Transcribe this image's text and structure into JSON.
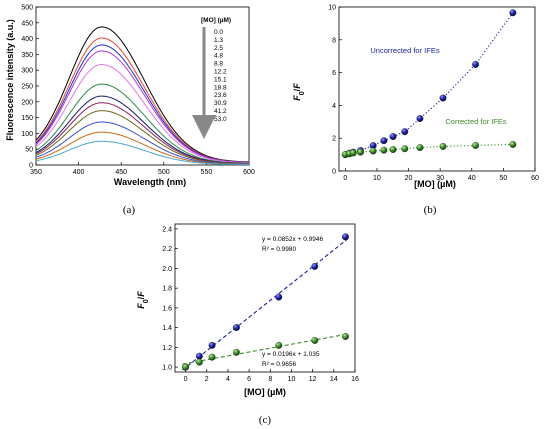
{
  "chart_data": [
    {
      "id": "a",
      "type": "line",
      "caption": "(a)",
      "xlabel": "Wavelength (nm)",
      "ylabel": "Fluorescence intensity (a.u.)",
      "xlim": [
        350,
        600
      ],
      "ylim": [
        0,
        500
      ],
      "xticks": [
        350,
        400,
        450,
        500,
        550,
        600
      ],
      "yticks": [
        0,
        50,
        100,
        150,
        200,
        250,
        300,
        350,
        400,
        450,
        500
      ],
      "legend_title": "[MO] (µM)",
      "peak_wavelength": 427,
      "series": [
        {
          "name": "0.0",
          "color": "#000000",
          "peak": 437
        },
        {
          "name": "1.3",
          "color": "#e8452e",
          "peak": 402
        },
        {
          "name": "2.5",
          "color": "#2231c9",
          "peak": 380
        },
        {
          "name": "4.8",
          "color": "#b03bd6",
          "peak": 361
        },
        {
          "name": "8.8",
          "color": "#e07ae6",
          "peak": 318
        },
        {
          "name": "12.2",
          "color": "#2e8b4a",
          "peak": 256
        },
        {
          "name": "15.1",
          "color": "#17186b",
          "peak": 218
        },
        {
          "name": "18.8",
          "color": "#8a1f5a",
          "peak": 197
        },
        {
          "name": "23.6",
          "color": "#6b6b1a",
          "peak": 172
        },
        {
          "name": "30.9",
          "color": "#3b4fd6",
          "peak": 136
        },
        {
          "name": "41.2",
          "color": "#c86a1a",
          "peak": 104
        },
        {
          "name": "53.0",
          "color": "#4aa8c8",
          "peak": 75
        }
      ]
    },
    {
      "id": "b",
      "type": "scatter",
      "caption": "(b)",
      "xlabel": "[MO] (µM)",
      "ylabel": "F0/F",
      "xlim": [
        -2,
        60
      ],
      "ylim": [
        0,
        10
      ],
      "xticks": [
        0,
        10,
        20,
        30,
        40,
        50,
        60
      ],
      "yticks": [
        0,
        2,
        4,
        6,
        8,
        10
      ],
      "series": [
        {
          "name": "Uncorrected for IFEs",
          "color": "#1a1f9e",
          "x": [
            0,
            1.3,
            2.5,
            4.8,
            8.8,
            12.2,
            15.1,
            18.8,
            23.6,
            30.9,
            41.2,
            53.0
          ],
          "y": [
            1.0,
            1.09,
            1.15,
            1.25,
            1.55,
            1.85,
            2.1,
            2.4,
            3.2,
            4.45,
            6.5,
            9.65
          ]
        },
        {
          "name": "Corrected for IFEs",
          "color": "#3a8a2a",
          "x": [
            0,
            1.3,
            2.5,
            4.8,
            8.8,
            12.2,
            15.1,
            18.8,
            23.6,
            30.9,
            41.2,
            53.0
          ],
          "y": [
            1.0,
            1.05,
            1.1,
            1.15,
            1.22,
            1.27,
            1.31,
            1.36,
            1.43,
            1.5,
            1.56,
            1.62
          ]
        }
      ]
    },
    {
      "id": "c",
      "type": "scatter",
      "caption": "(c)",
      "xlabel": "[MO] (µM)",
      "ylabel": "F0/F",
      "xlim": [
        -1,
        16
      ],
      "ylim": [
        0.95,
        2.45
      ],
      "xticks": [
        0,
        2,
        4,
        6,
        8,
        10,
        12,
        14,
        16
      ],
      "yticks": [
        1.0,
        1.2,
        1.4,
        1.6,
        1.8,
        2.0,
        2.2,
        2.4
      ],
      "series": [
        {
          "color": "#1a1f9e",
          "x": [
            0,
            1.3,
            2.5,
            4.8,
            8.8,
            12.2,
            15.1
          ],
          "y": [
            1.0,
            1.11,
            1.22,
            1.4,
            1.71,
            2.02,
            2.32
          ],
          "fit": {
            "slope": 0.0852,
            "intercept": 0.9946,
            "equation": "y = 0.0852x + 0.9946",
            "r2": "R² = 0.9980"
          }
        },
        {
          "color": "#3a8a2a",
          "x": [
            0,
            1.3,
            2.5,
            4.8,
            8.8,
            12.2,
            15.1
          ],
          "y": [
            1.0,
            1.05,
            1.1,
            1.15,
            1.22,
            1.27,
            1.31
          ],
          "fit": {
            "slope": 0.0196,
            "intercept": 1.035,
            "equation": "y = 0.0196x + 1.035",
            "r2": "R² = 0.9656"
          }
        }
      ]
    }
  ]
}
